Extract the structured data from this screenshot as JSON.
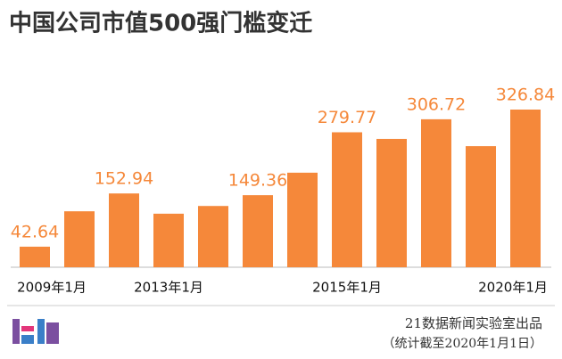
{
  "chart_data": {
    "type": "bar",
    "title": "中国公司市值500强门槛变迁",
    "categories": [
      "2009年1月",
      null,
      null,
      "2013年1月",
      null,
      null,
      null,
      "2015年1月",
      null,
      null,
      null,
      "2020年1月"
    ],
    "values": [
      42.64,
      116,
      152.94,
      111,
      127,
      149.36,
      196,
      279.77,
      266,
      306.72,
      251,
      326.84
    ],
    "value_labels": [
      "42.64",
      null,
      "152.94",
      null,
      null,
      "149.36",
      null,
      "279.77",
      null,
      "306.72",
      null,
      "326.84"
    ],
    "color": "#f5883a",
    "label_color": "#f5883a",
    "source": "21数据新闻实验室出品",
    "note": "（统计截至2020年1月1日）"
  }
}
